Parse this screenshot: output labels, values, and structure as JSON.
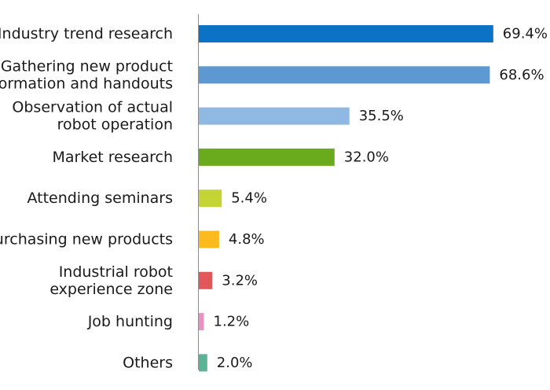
{
  "chart_data": {
    "type": "bar",
    "orientation": "horizontal",
    "grid": false,
    "categories": [
      [
        "Industry trend research"
      ],
      [
        "Gathering new product",
        "information and handouts"
      ],
      [
        "Observation of actual",
        "robot operation"
      ],
      [
        "Market research"
      ],
      [
        "Attending seminars"
      ],
      [
        "Purchasing new products"
      ],
      [
        "Industrial robot",
        "experience zone"
      ],
      [
        "Job hunting"
      ],
      [
        "Others"
      ]
    ],
    "values": [
      69.4,
      68.6,
      35.5,
      32.0,
      5.4,
      4.8,
      3.2,
      1.2,
      2.0
    ],
    "value_labels": [
      "69.4%",
      "68.6%",
      "35.5%",
      "32.0%",
      "5.4%",
      "4.8%",
      "3.2%",
      "1.2%",
      "2.0%"
    ],
    "unit": "%",
    "colors": [
      "#0b72c6",
      "#5e98d3",
      "#8fb9e3",
      "#6aab1e",
      "#c5d435",
      "#fbbb1e",
      "#e2575a",
      "#ea92c2",
      "#5bb395"
    ]
  }
}
